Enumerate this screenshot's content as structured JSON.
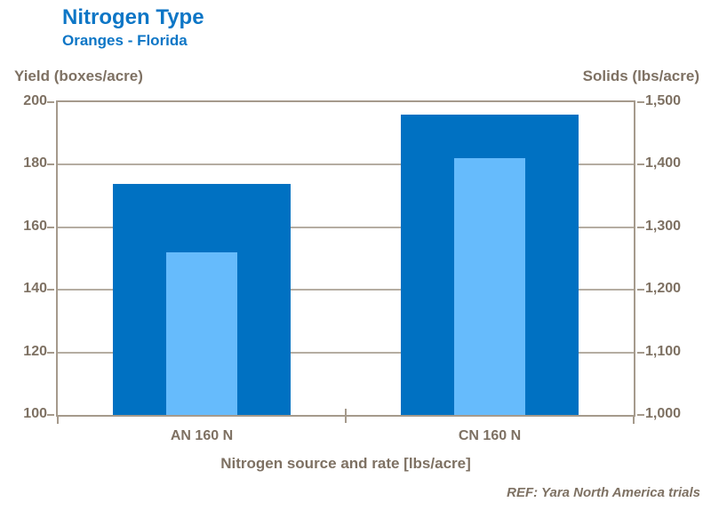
{
  "page": {
    "title": "Nitrogen Type",
    "subtitle": "Oranges - Florida",
    "left_axis_title": "Yield (boxes/acre)",
    "right_axis_title": "Solids (lbs/acre)",
    "x_axis_title": "Nitrogen source and rate [lbs/acre]",
    "reference": "REF: Yara North America trials"
  },
  "colors": {
    "title_blue": "#0d76c6",
    "dark_bar": "#0071c2",
    "light_bar": "#66bbfc",
    "axis_text": "#7e7163",
    "gridline": "#b5ada2",
    "plot_border": "#a59a8c"
  },
  "chart_data": {
    "type": "bar",
    "title": "Nitrogen Type",
    "subtitle": "Oranges - Florida",
    "categories": [
      "AN 160 N",
      "CN 160 N"
    ],
    "series": [
      {
        "name": "Yield (boxes/acre)",
        "axis": "left",
        "color": "#0071c2",
        "values": [
          174,
          196
        ]
      },
      {
        "name": "Solids (lbs/acre)",
        "axis": "right",
        "color": "#66bbfc",
        "values": [
          1260,
          1410
        ]
      }
    ],
    "left_axis": {
      "label": "Yield (boxes/acre)",
      "min": 100,
      "max": 200,
      "ticks": [
        "200",
        "180",
        "160",
        "140",
        "120",
        "100"
      ]
    },
    "right_axis": {
      "label": "Solids (lbs/acre)",
      "min": 1000,
      "max": 1500,
      "ticks": [
        "1,500",
        "1,400",
        "1,300",
        "1,200",
        "1,100",
        "1,000"
      ]
    },
    "xlabel": "Nitrogen source and rate [lbs/acre]",
    "grid": true,
    "legend_position": "none",
    "annotation": "REF: Yara North America trials"
  }
}
